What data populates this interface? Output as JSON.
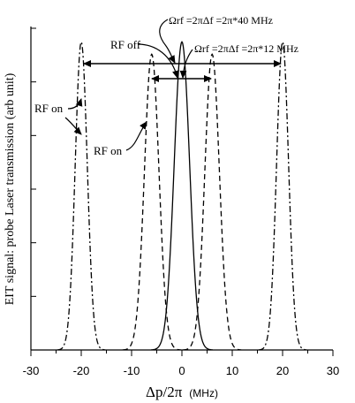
{
  "chart_data": {
    "type": "line",
    "xlabel": "Δp/2π",
    "xlabel_unit": "(MHz)",
    "ylabel": "EIT signal: probe Laser transmission (arb unit)",
    "xlim": [
      -30,
      30
    ],
    "ylim": [
      0,
      1.05
    ],
    "x_ticks": [
      -30,
      -20,
      -10,
      0,
      10,
      20,
      30
    ],
    "y_ticks_unlabeled": 6,
    "grid": false,
    "legend": "none",
    "series": [
      {
        "style": "solid",
        "line_style": "solid",
        "center": 0,
        "fwhm": 3.6,
        "peak": 1.0
      },
      {
        "style": "dashed",
        "line_style": "dashed",
        "centers": [
          -6,
          6
        ],
        "fwhm": 3.4,
        "peak": 0.96
      },
      {
        "style": "dash-dot",
        "line_style": "dash-dot",
        "centers": [
          -20,
          20
        ],
        "fwhm": 2.8,
        "peak": 1.0
      }
    ],
    "annotations": {
      "rf_off": "RF off",
      "rf_on_outer": "RF on",
      "rf_on_inner": "RF on",
      "omega_outer": "Ωrf =2πΔf =2π*40 MHz",
      "omega_inner": "Ωrf =2πΔf =2π*12 MHz"
    }
  }
}
